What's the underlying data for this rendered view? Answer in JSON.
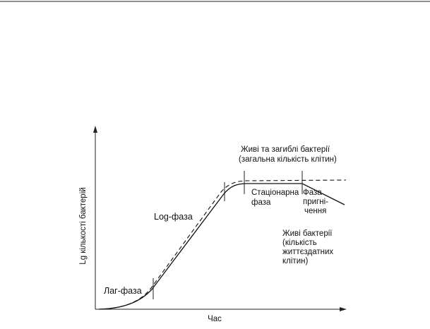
{
  "diagram": {
    "y_axis_label": "Lg  кількості бактерій",
    "x_axis_label": "Час",
    "phases": {
      "lag": "Лаг-фаза",
      "log": "Log-фаза",
      "stationary": [
        "Стаціонарна",
        "фаза"
      ],
      "decline": [
        "Фаза",
        "пригні-",
        "чення"
      ]
    },
    "curves": {
      "total": [
        "Живі та загиблі бактерії",
        "(загальна кількість клітин)"
      ],
      "viable": [
        "Живі бактерії",
        "(кількість",
        "життєздатних",
        "клітин)"
      ]
    }
  }
}
